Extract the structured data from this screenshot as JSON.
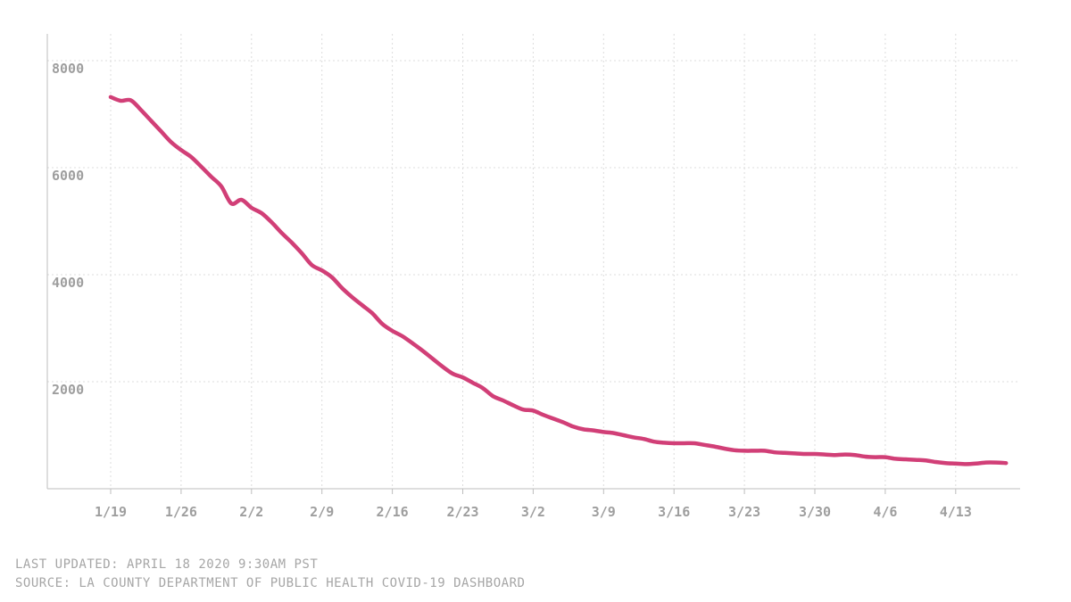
{
  "chart_data": {
    "type": "line",
    "title": "",
    "xlabel": "",
    "ylabel": "",
    "ylim": [
      0,
      8000
    ],
    "yticks": [
      2000,
      4000,
      6000,
      8000
    ],
    "xtick_labels": [
      "1/19",
      "1/26",
      "2/2",
      "2/9",
      "2/16",
      "2/23",
      "3/2",
      "3/9",
      "3/16",
      "3/23",
      "3/30",
      "4/6",
      "4/13"
    ],
    "grid": true,
    "legend": "none",
    "line_color": "#d13f77",
    "series": [
      {
        "x": [
          "1/19",
          "1/20",
          "1/21",
          "1/22",
          "1/23",
          "1/24",
          "1/25",
          "1/26",
          "1/27",
          "1/28",
          "1/29",
          "1/30",
          "1/31",
          "2/1",
          "2/2",
          "2/3",
          "2/4",
          "2/5",
          "2/6",
          "2/7",
          "2/8",
          "2/9",
          "2/10",
          "2/11",
          "2/12",
          "2/13",
          "2/14",
          "2/15",
          "2/16",
          "2/17",
          "2/18",
          "2/19",
          "2/20",
          "2/21",
          "2/22",
          "2/23",
          "2/24",
          "2/25",
          "2/26",
          "2/27",
          "2/28",
          "2/29",
          "3/1",
          "3/2",
          "3/3",
          "3/4",
          "3/5",
          "3/6",
          "3/7",
          "3/8",
          "3/9",
          "3/10",
          "3/11",
          "3/12",
          "3/13",
          "3/14",
          "3/15",
          "3/16",
          "3/17",
          "3/18",
          "3/19",
          "3/20",
          "3/21",
          "3/22",
          "3/23",
          "3/24",
          "3/25",
          "3/26",
          "3/27",
          "3/28",
          "3/29",
          "3/30",
          "3/31",
          "4/1",
          "4/2",
          "4/3",
          "4/4",
          "4/5",
          "4/6",
          "4/7",
          "4/8",
          "4/9",
          "4/10",
          "4/11",
          "4/12",
          "4/13",
          "4/14",
          "4/15",
          "4/16",
          "4/17"
        ],
        "values": [
          7320,
          7250,
          7260,
          7080,
          6880,
          6680,
          6480,
          6330,
          6200,
          6020,
          5830,
          5650,
          5330,
          5400,
          5250,
          5150,
          4980,
          4780,
          4600,
          4400,
          4180,
          4080,
          3950,
          3750,
          3580,
          3430,
          3280,
          3080,
          2950,
          2850,
          2720,
          2580,
          2430,
          2280,
          2150,
          2080,
          1980,
          1880,
          1730,
          1650,
          1560,
          1480,
          1460,
          1380,
          1310,
          1240,
          1160,
          1110,
          1090,
          1060,
          1040,
          1000,
          960,
          930,
          880,
          860,
          850,
          850,
          850,
          820,
          790,
          750,
          720,
          710,
          710,
          710,
          680,
          670,
          660,
          650,
          650,
          640,
          630,
          640,
          630,
          600,
          590,
          590,
          560,
          550,
          540,
          530,
          500,
          480,
          470,
          460,
          470,
          490,
          490,
          480
        ]
      }
    ]
  },
  "footer": {
    "last_updated": "LAST UPDATED: APRIL 18 2020 9:30AM PST",
    "source": "SOURCE: LA COUNTY DEPARTMENT OF PUBLIC HEALTH COVID-19 DASHBOARD"
  }
}
